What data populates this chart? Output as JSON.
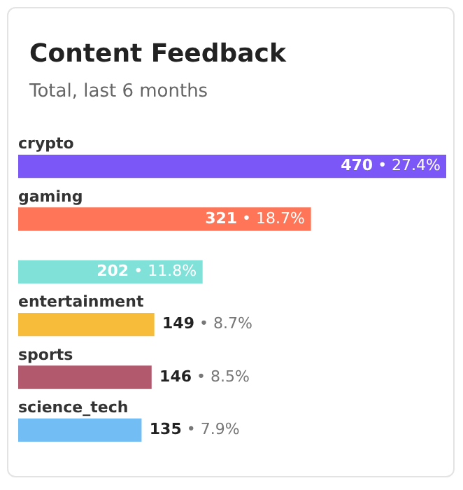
{
  "chart_data": {
    "type": "bar",
    "orientation": "horizontal",
    "title": "Content Feedback",
    "subtitle": "Total, last 6 months",
    "categories": [
      "crypto",
      "gaming",
      null,
      "entertainment",
      "sports",
      "science_tech"
    ],
    "values": [
      470,
      321,
      202,
      149,
      146,
      135
    ],
    "colors": [
      "#7b57f8",
      "#ff7557",
      "#80e1d9",
      "#f8bc3b",
      "#b2596e",
      "#72bef4"
    ],
    "value_labels": [
      "470 • 27.4%",
      "321 • 18.7%",
      "202 • 11.8%",
      "149 • 8.7%",
      "146 • 8.5%",
      "135 • 7.9%"
    ],
    "legend": false
  }
}
